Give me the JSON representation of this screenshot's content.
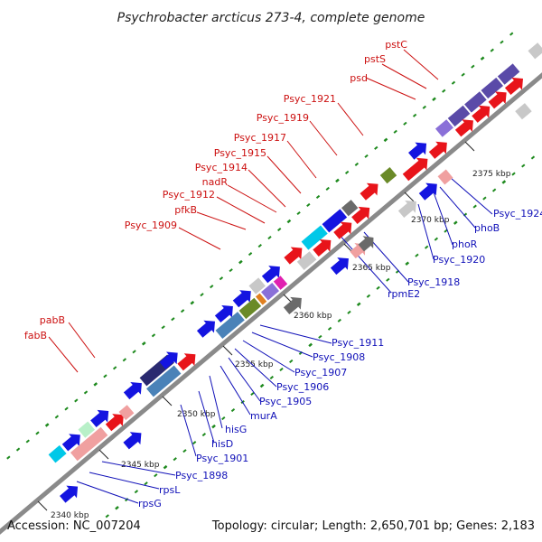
{
  "title": "Psychrobacter arcticus 273-4, complete genome",
  "footer": {
    "accession": "Accession: NC_007204",
    "summary": "Topology: circular; Length: 2,650,701 bp; Genes: 2,183"
  },
  "colors": {
    "backbone": "#8a8a8a",
    "dots": "#1e8a1e",
    "label_red": "#cc1010",
    "label_blue": "#1010b8",
    "red_gene": "#e8141a",
    "blue_gene": "#1414e0",
    "grey_gene": "#6a6a6a",
    "light_grey": "#c8c8c8",
    "purple_gene": "#5a4aa8",
    "steel_gene": "#4a82b8",
    "cyan_gene": "#00c8e8",
    "olive_gene": "#6a8a28",
    "salmon_gene": "#f0a0a0",
    "magenta_gene": "#e020b0",
    "orange_gene": "#e08020",
    "violet_gene": "#8a70d8"
  },
  "ticks": [
    {
      "label": "2340 kbp"
    },
    {
      "label": "2345 kbp"
    },
    {
      "label": "2350 kbp"
    },
    {
      "label": "2355 kbp"
    },
    {
      "label": "2360 kbp"
    },
    {
      "label": "2365 kbp"
    },
    {
      "label": "2370 kbp"
    },
    {
      "label": "2375 kbp"
    }
  ],
  "labels_red": [
    "pstC",
    "pstS",
    "psd",
    "Psyc_1921",
    "Psyc_1919",
    "Psyc_1917",
    "Psyc_1915",
    "Psyc_1914",
    "nadR",
    "Psyc_1912",
    "pfkB",
    "Psyc_1909",
    "pabB",
    "fabB"
  ],
  "labels_blue": [
    "Psyc_1924",
    "phoB",
    "phoR",
    "Psyc_1920",
    "Psyc_1918",
    "rpmE2",
    "Psyc_1911",
    "Psyc_1908",
    "Psyc_1907",
    "Psyc_1906",
    "Psyc_1905",
    "murA",
    "hisG",
    "hisD",
    "Psyc_1901",
    "Psyc_1898",
    "rpsL",
    "rpsG"
  ]
}
